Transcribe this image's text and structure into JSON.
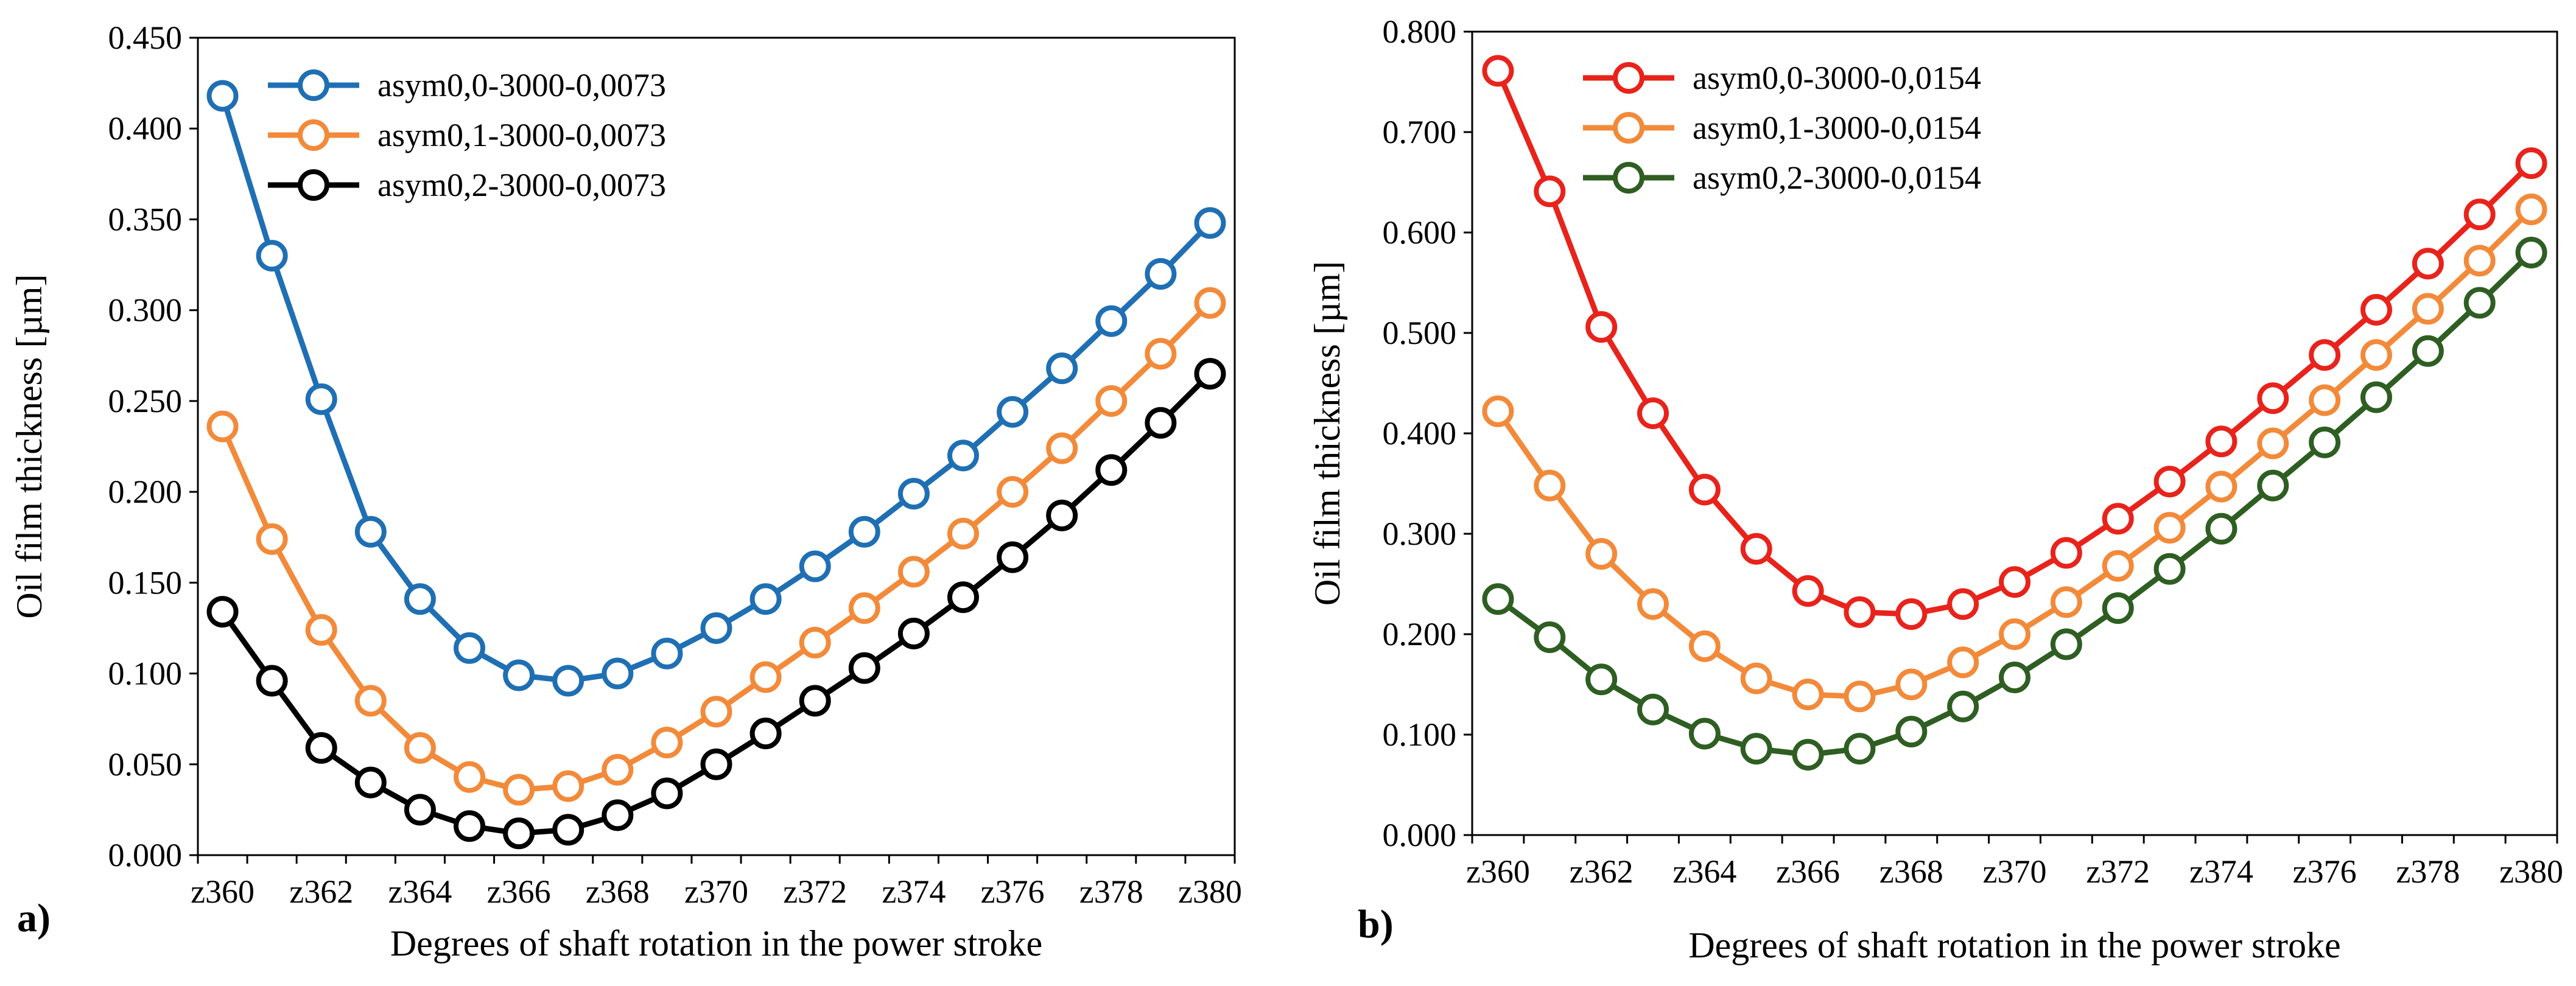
{
  "chart_data": [
    {
      "type": "line",
      "panel_label": "a)",
      "title": "",
      "xlabel": "Degrees of shaft rotation in the power stroke",
      "ylabel": "Oil film thickness [µm]",
      "ylim": [
        0,
        0.45
      ],
      "yticks": [
        "0.000",
        "0.050",
        "0.100",
        "0.150",
        "0.200",
        "0.250",
        "0.300",
        "0.350",
        "0.400",
        "0.450"
      ],
      "x": [
        360,
        361,
        362,
        363,
        364,
        365,
        366,
        367,
        368,
        369,
        370,
        371,
        372,
        373,
        374,
        375,
        376,
        377,
        378,
        379,
        380
      ],
      "xticks": [
        "z360",
        "z362",
        "z364",
        "z366",
        "z368",
        "z370",
        "z372",
        "z374",
        "z376",
        "z378",
        "z380"
      ],
      "legend_position": "top-left",
      "grid": false,
      "series": [
        {
          "name": "asym0,0-3000-0,0073",
          "color": "#1f6fb4",
          "values": [
            0.418,
            0.33,
            0.251,
            0.178,
            0.141,
            0.114,
            0.099,
            0.096,
            0.1,
            0.111,
            0.125,
            0.141,
            0.159,
            0.178,
            0.199,
            0.22,
            0.244,
            0.268,
            0.294,
            0.32,
            0.348
          ]
        },
        {
          "name": "asym0,1-3000-0,0073",
          "color": "#f28a3a",
          "values": [
            0.236,
            0.174,
            0.124,
            0.085,
            0.059,
            0.043,
            0.036,
            0.038,
            0.047,
            0.062,
            0.079,
            0.098,
            0.117,
            0.136,
            0.156,
            0.177,
            0.2,
            0.224,
            0.25,
            0.276,
            0.304
          ]
        },
        {
          "name": "asym0,2-3000-0,0073",
          "color": "#000000",
          "values": [
            0.134,
            0.096,
            0.059,
            0.04,
            0.025,
            0.016,
            0.012,
            0.014,
            0.022,
            0.034,
            0.05,
            0.067,
            0.085,
            0.103,
            0.122,
            0.142,
            0.164,
            0.187,
            0.212,
            0.238,
            0.265
          ]
        }
      ]
    },
    {
      "type": "line",
      "panel_label": "b)",
      "title": "",
      "xlabel": "Degrees of shaft rotation in the power stroke",
      "ylabel": "Oil film thickness [µm]",
      "ylim": [
        0,
        0.8
      ],
      "yticks": [
        "0.000",
        "0.100",
        "0.200",
        "0.300",
        "0.400",
        "0.500",
        "0.600",
        "0.700",
        "0.800"
      ],
      "x": [
        360,
        361,
        362,
        363,
        364,
        365,
        366,
        367,
        368,
        369,
        370,
        371,
        372,
        373,
        374,
        375,
        376,
        377,
        378,
        379,
        380
      ],
      "xticks": [
        "z360",
        "z362",
        "z364",
        "z366",
        "z368",
        "z370",
        "z372",
        "z374",
        "z376",
        "z378",
        "z380"
      ],
      "legend_position": "top-left",
      "grid": false,
      "series": [
        {
          "name": "asym0,0-3000-0,0154",
          "color": "#e8231b",
          "values": [
            0.761,
            0.641,
            0.506,
            0.42,
            0.344,
            0.285,
            0.243,
            0.222,
            0.22,
            0.23,
            0.252,
            0.281,
            0.315,
            0.352,
            0.392,
            0.435,
            0.478,
            0.523,
            0.569,
            0.618,
            0.669
          ]
        },
        {
          "name": "asym0,1-3000-0,0154",
          "color": "#f28a3a",
          "values": [
            0.422,
            0.348,
            0.28,
            0.23,
            0.188,
            0.156,
            0.14,
            0.138,
            0.15,
            0.172,
            0.2,
            0.232,
            0.268,
            0.306,
            0.347,
            0.39,
            0.433,
            0.478,
            0.524,
            0.572,
            0.623
          ]
        },
        {
          "name": "asym0,2-3000-0,0154",
          "color": "#2e5e22",
          "values": [
            0.235,
            0.197,
            0.155,
            0.125,
            0.101,
            0.086,
            0.08,
            0.086,
            0.103,
            0.128,
            0.157,
            0.19,
            0.226,
            0.265,
            0.305,
            0.348,
            0.391,
            0.436,
            0.482,
            0.53,
            0.58
          ]
        }
      ]
    }
  ]
}
